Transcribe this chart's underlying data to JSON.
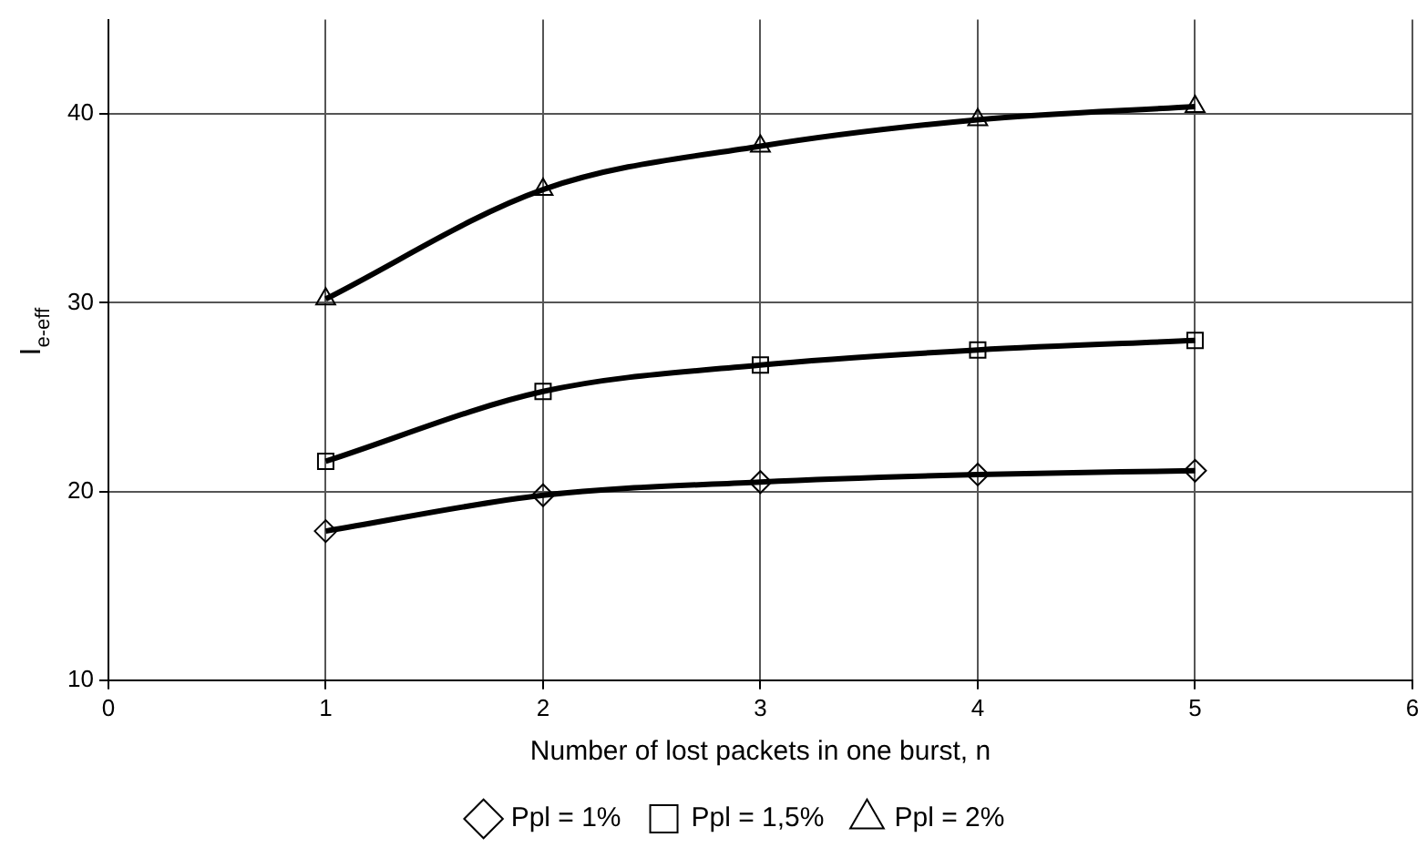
{
  "chart_data": {
    "type": "line",
    "xlabel": "Number of lost packets in one burst, n",
    "ylabel": "I$_{e-eff}$",
    "x": [
      1,
      2,
      3,
      4,
      5
    ],
    "series": [
      {
        "name": "Ppl = 1%",
        "color": "#000000",
        "marker": "diamond",
        "values": [
          17.9,
          19.8,
          20.5,
          20.9,
          21.1
        ]
      },
      {
        "name": "Ppl = 1,5%",
        "color": "#000000",
        "marker": "square",
        "values": [
          21.6,
          25.3,
          26.7,
          27.5,
          28.0
        ]
      },
      {
        "name": "Ppl = 2%",
        "color": "#000000",
        "marker": "triangle",
        "values": [
          30.2,
          36.0,
          38.3,
          39.7,
          40.4
        ]
      }
    ],
    "xlim": [
      0,
      6
    ],
    "xticks": [
      0,
      1,
      2,
      3,
      4,
      5,
      6
    ],
    "ylim": [
      10,
      45
    ],
    "yticks": [
      10,
      20,
      30,
      40
    ],
    "grid": true,
    "legend": "bottom",
    "line_style": "solid"
  }
}
